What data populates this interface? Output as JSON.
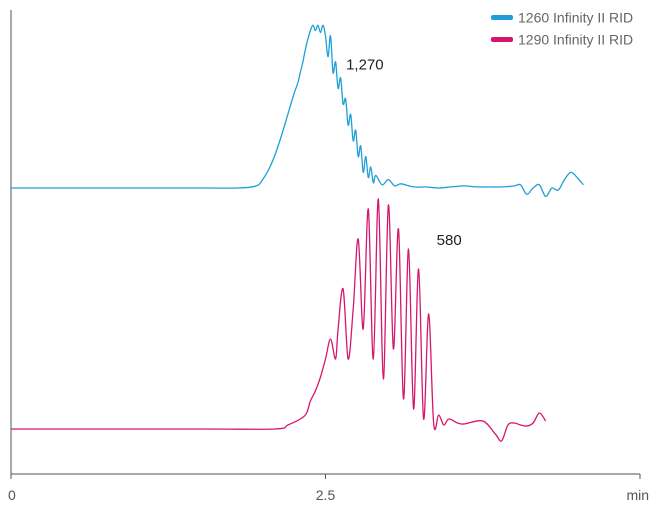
{
  "chart_data": {
    "type": "line",
    "title": "",
    "xlabel": "",
    "ylabel": "",
    "x_unit": "min",
    "xlim": [
      0,
      5
    ],
    "x_ticks": [
      {
        "value": 0,
        "label": "0"
      },
      {
        "value": 2.5,
        "label": "2.5"
      },
      {
        "value": 5,
        "label": "min"
      }
    ],
    "grid": false,
    "legend_position": "top-right",
    "series": [
      {
        "name": "1260 Infinity II RID",
        "color": "#1f9fd6",
        "annotation": {
          "label": "1,270",
          "x": 2.6
        },
        "points": [
          [
            0.0,
            0
          ],
          [
            1.5,
            0
          ],
          [
            1.8,
            0
          ],
          [
            1.95,
            2
          ],
          [
            2.0,
            8
          ],
          [
            2.05,
            18
          ],
          [
            2.1,
            32
          ],
          [
            2.15,
            50
          ],
          [
            2.2,
            70
          ],
          [
            2.25,
            90
          ],
          [
            2.28,
            100
          ],
          [
            2.3,
            110
          ],
          [
            2.32,
            120
          ],
          [
            2.34,
            132
          ],
          [
            2.36,
            142
          ],
          [
            2.38,
            150
          ],
          [
            2.4,
            155
          ],
          [
            2.42,
            150
          ],
          [
            2.44,
            155
          ],
          [
            2.46,
            148
          ],
          [
            2.48,
            155
          ],
          [
            2.5,
            145
          ],
          [
            2.52,
            125
          ],
          [
            2.54,
            145
          ],
          [
            2.56,
            110
          ],
          [
            2.58,
            120
          ],
          [
            2.6,
            95
          ],
          [
            2.62,
            105
          ],
          [
            2.64,
            80
          ],
          [
            2.66,
            85
          ],
          [
            2.68,
            60
          ],
          [
            2.7,
            70
          ],
          [
            2.72,
            45
          ],
          [
            2.74,
            55
          ],
          [
            2.76,
            30
          ],
          [
            2.78,
            40
          ],
          [
            2.8,
            15
          ],
          [
            2.82,
            30
          ],
          [
            2.84,
            10
          ],
          [
            2.86,
            20
          ],
          [
            2.88,
            5
          ],
          [
            2.9,
            12
          ],
          [
            2.95,
            3
          ],
          [
            3.0,
            8
          ],
          [
            3.05,
            2
          ],
          [
            3.1,
            4
          ],
          [
            3.2,
            1
          ],
          [
            3.3,
            1
          ],
          [
            3.4,
            0
          ],
          [
            3.5,
            1
          ],
          [
            3.6,
            2
          ],
          [
            3.7,
            1
          ],
          [
            3.8,
            1
          ],
          [
            3.9,
            1
          ],
          [
            4.0,
            2
          ],
          [
            4.05,
            3
          ],
          [
            4.1,
            -6
          ],
          [
            4.15,
            0
          ],
          [
            4.2,
            3
          ],
          [
            4.25,
            -8
          ],
          [
            4.3,
            0
          ],
          [
            4.35,
            -2
          ],
          [
            4.4,
            8
          ],
          [
            4.45,
            15
          ],
          [
            4.5,
            10
          ],
          [
            4.55,
            3
          ]
        ]
      },
      {
        "name": "1290 Infinity II RID",
        "color": "#d4176c",
        "annotation": {
          "label": "580",
          "x": 3.32
        },
        "points": [
          [
            0.0,
            0
          ],
          [
            1.5,
            0
          ],
          [
            2.1,
            0
          ],
          [
            2.2,
            4
          ],
          [
            2.3,
            10
          ],
          [
            2.35,
            16
          ],
          [
            2.38,
            28
          ],
          [
            2.42,
            38
          ],
          [
            2.46,
            52
          ],
          [
            2.5,
            70
          ],
          [
            2.54,
            90
          ],
          [
            2.58,
            70
          ],
          [
            2.6,
            100
          ],
          [
            2.64,
            140
          ],
          [
            2.68,
            70
          ],
          [
            2.72,
            120
          ],
          [
            2.76,
            190
          ],
          [
            2.8,
            100
          ],
          [
            2.84,
            220
          ],
          [
            2.88,
            70
          ],
          [
            2.92,
            230
          ],
          [
            2.96,
            50
          ],
          [
            3.0,
            224
          ],
          [
            3.04,
            80
          ],
          [
            3.08,
            200
          ],
          [
            3.12,
            30
          ],
          [
            3.16,
            180
          ],
          [
            3.2,
            20
          ],
          [
            3.24,
            160
          ],
          [
            3.28,
            10
          ],
          [
            3.32,
            115
          ],
          [
            3.36,
            5
          ],
          [
            3.4,
            14
          ],
          [
            3.44,
            4
          ],
          [
            3.48,
            10
          ],
          [
            3.55,
            6
          ],
          [
            3.6,
            5
          ],
          [
            3.75,
            8
          ],
          [
            3.85,
            -5
          ],
          [
            3.9,
            -12
          ],
          [
            3.95,
            4
          ],
          [
            4.0,
            6
          ],
          [
            4.05,
            4
          ],
          [
            4.1,
            3
          ],
          [
            4.15,
            6
          ],
          [
            4.2,
            16
          ],
          [
            4.25,
            8
          ]
        ]
      }
    ]
  }
}
